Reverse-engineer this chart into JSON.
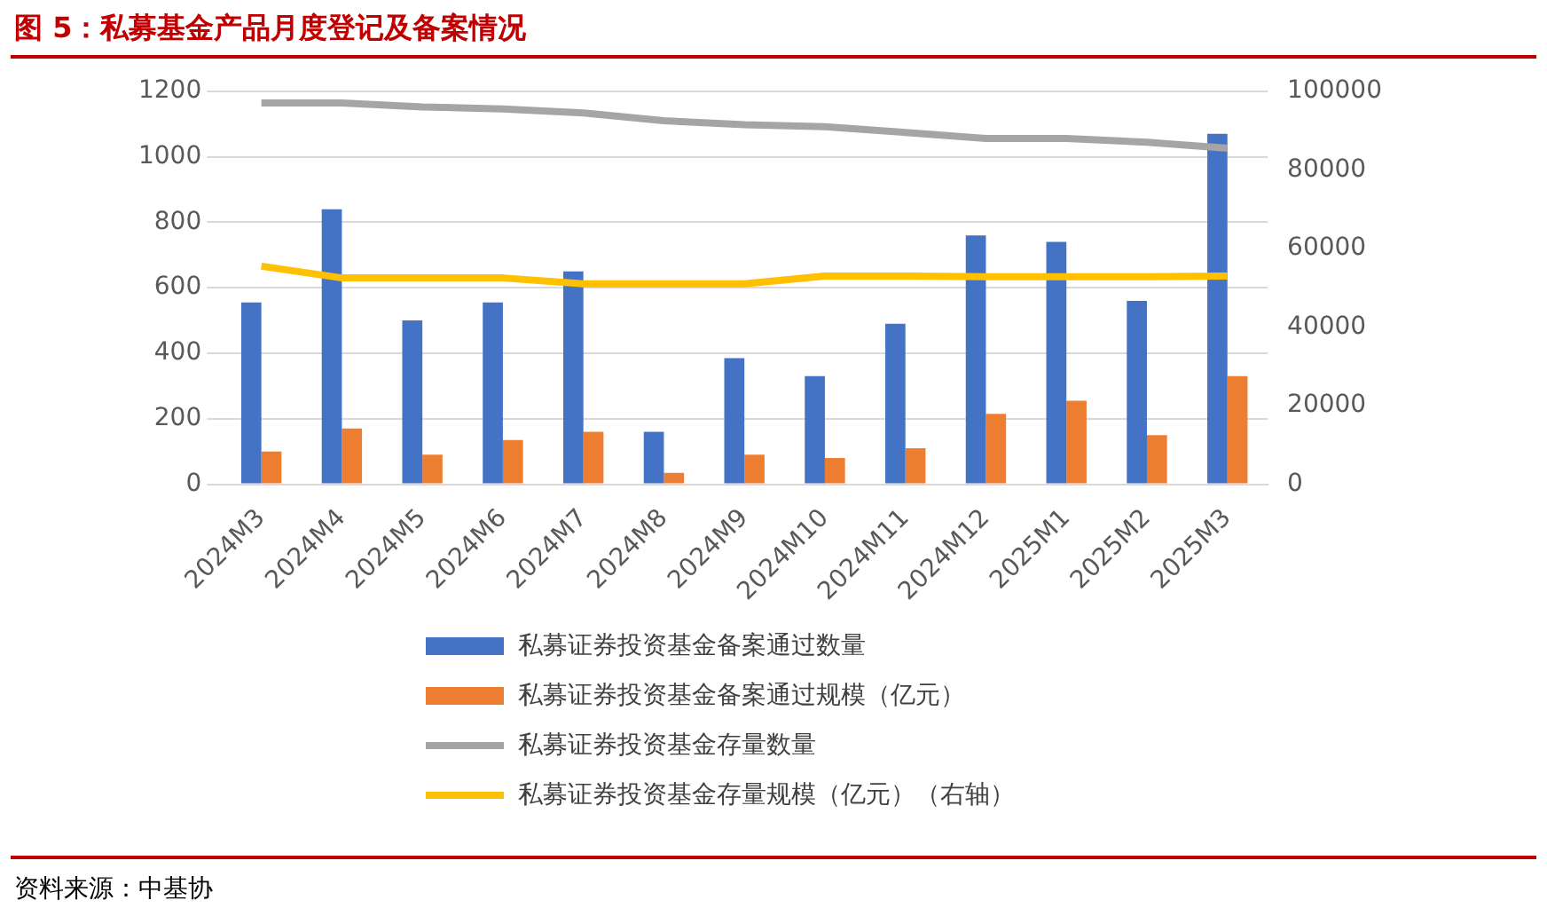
{
  "chart_data": {
    "type": "bar",
    "title": "图 5：私募基金产品月度登记及备案情况",
    "categories": [
      "2024M3",
      "2024M4",
      "2024M5",
      "2024M6",
      "2024M7",
      "2024M8",
      "2024M9",
      "2024M10",
      "2024M11",
      "2024M12",
      "2025M1",
      "2025M2",
      "2025M3"
    ],
    "series": [
      {
        "name": "私募证券投资基金备案通过数量",
        "color": "#4472c4",
        "values": [
          555,
          840,
          500,
          555,
          650,
          160,
          385,
          330,
          490,
          760,
          740,
          560,
          1070
        ]
      },
      {
        "name": "私募证券投资基金备案通过规模（亿元）",
        "color": "#ed7d31",
        "values": [
          100,
          170,
          90,
          135,
          160,
          35,
          90,
          80,
          110,
          215,
          255,
          150,
          330
        ]
      },
      {
        "name": "私募证券投资基金存量数量",
        "type": "line",
        "axis": "y2",
        "color": "#a5a5a5",
        "values": [
          97000,
          97000,
          96000,
          95500,
          94500,
          92500,
          91500,
          91000,
          89500,
          88000,
          88000,
          87000,
          85500
        ]
      },
      {
        "name": "私募证券投资基金存量规模（亿元）（右轴）",
        "type": "line",
        "axis": "y2",
        "color": "#ffc000",
        "values": [
          55500,
          52500,
          52500,
          52500,
          51000,
          51000,
          51000,
          53000,
          53000,
          52800,
          52800,
          52800,
          53000
        ]
      }
    ],
    "ylim": [
      0,
      1200
    ],
    "yticks": [
      0,
      200,
      400,
      600,
      800,
      1000,
      1200
    ],
    "y2lim": [
      0,
      100000
    ],
    "y2ticks": [
      0,
      20000,
      40000,
      60000,
      80000,
      100000
    ],
    "grid": "y",
    "legend": "bottom",
    "marker": "none",
    "annotations": [
      "资料来源：中基协"
    ]
  }
}
